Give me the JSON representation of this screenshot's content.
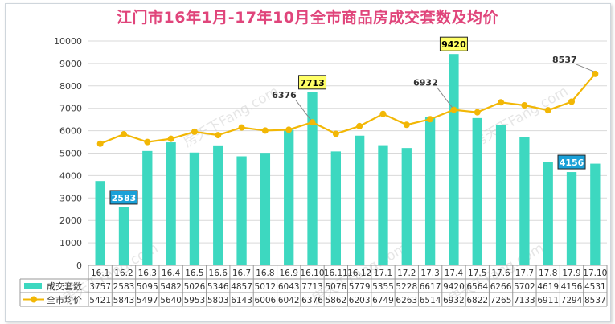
{
  "title": "江门市16年1月-17年10月全市商品房成交套数及均价",
  "watermark": "房天下Fang.com",
  "colors": {
    "bar": "#3dd8c0",
    "line": "#f2b705",
    "title": "#e0457b",
    "grid": "#d9d9d9",
    "callout_yellow": "#ffff66",
    "callout_blue": "#1aa0d8"
  },
  "chart_data": {
    "type": "bar",
    "title": "江门市16年1月-17年10月全市商品房成交套数及均价",
    "categories": [
      "16.1",
      "16.2",
      "16.3",
      "16.4",
      "16.5",
      "16.6",
      "16.7",
      "16.8",
      "16.9",
      "16.10",
      "16.11",
      "16.12",
      "17.1",
      "17.2",
      "17.3",
      "17.4",
      "17.5",
      "17.6",
      "17.7",
      "17.8",
      "17.9",
      "17.10"
    ],
    "ylim": [
      0,
      10000
    ],
    "yticks": [
      0,
      1000,
      2000,
      3000,
      4000,
      5000,
      6000,
      7000,
      8000,
      9000,
      10000
    ],
    "grid": true,
    "series": [
      {
        "name": "成交套数",
        "type": "bar",
        "values": [
          3757,
          2583,
          5095,
          5482,
          5026,
          5346,
          4857,
          5012,
          6043,
          7713,
          5076,
          5779,
          5355,
          5228,
          6617,
          9420,
          6564,
          6266,
          5702,
          4619,
          4156,
          4531
        ]
      },
      {
        "name": "全市均价",
        "type": "line",
        "values": [
          5421,
          5843,
          5497,
          5640,
          5953,
          5803,
          6143,
          6006,
          6042,
          6376,
          5862,
          6203,
          6749,
          6263,
          6514,
          6932,
          6822,
          7265,
          7133,
          6911,
          7294,
          8537
        ]
      }
    ],
    "annotations": [
      {
        "category": "16.2",
        "series": "成交套数",
        "text": "2583",
        "style": "blue"
      },
      {
        "category": "16.10",
        "series": "成交套数",
        "text": "7713",
        "style": "yellow"
      },
      {
        "category": "17.4",
        "series": "成交套数",
        "text": "9420",
        "style": "yellow"
      },
      {
        "category": "17.9",
        "series": "成交套数",
        "text": "4156",
        "style": "blue"
      },
      {
        "category": "16.10",
        "series": "全市均价",
        "text": "6376",
        "style": "plain"
      },
      {
        "category": "17.4",
        "series": "全市均价",
        "text": "6932",
        "style": "plain"
      },
      {
        "category": "17.10",
        "series": "全市均价",
        "text": "8537",
        "style": "plain"
      }
    ]
  }
}
